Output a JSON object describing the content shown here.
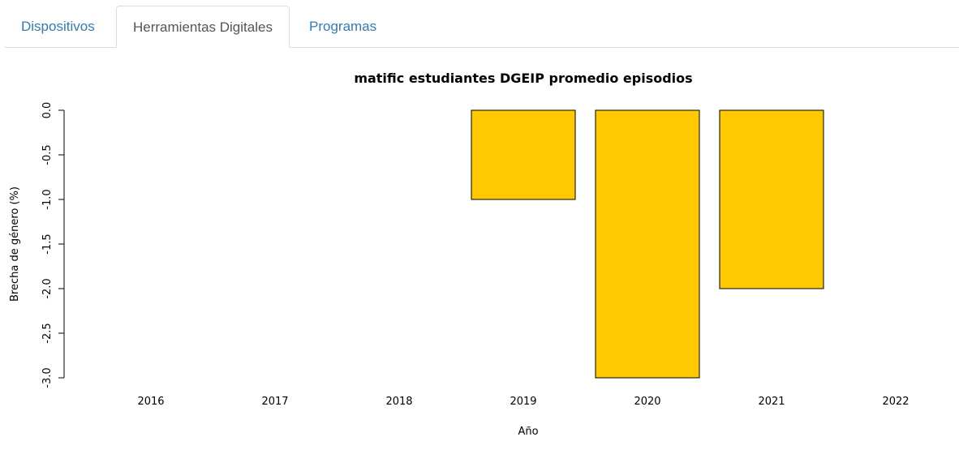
{
  "tabs": [
    {
      "label": "Dispositivos",
      "active": false
    },
    {
      "label": "Herramientas Digitales",
      "active": true
    },
    {
      "label": "Programas",
      "active": false
    }
  ],
  "chart_data": {
    "type": "bar",
    "title": "matific estudiantes DGEIP promedio episodios",
    "xlabel": "Año",
    "ylabel": "Brecha de género (%)",
    "categories": [
      "2016",
      "2017",
      "2018",
      "2019",
      "2020",
      "2021",
      "2022"
    ],
    "values": [
      null,
      null,
      null,
      -1,
      -3,
      -2,
      null
    ],
    "ylim": [
      -3,
      0
    ],
    "yticks": [
      "0.0",
      "-0.5",
      "-1.0",
      "-1.5",
      "-2.0",
      "-2.5",
      "-3.0"
    ],
    "ytick_values": [
      0,
      -0.5,
      -1,
      -1.5,
      -2,
      -2.5,
      -3
    ],
    "bar_color": "#FFC800",
    "grid": false
  }
}
